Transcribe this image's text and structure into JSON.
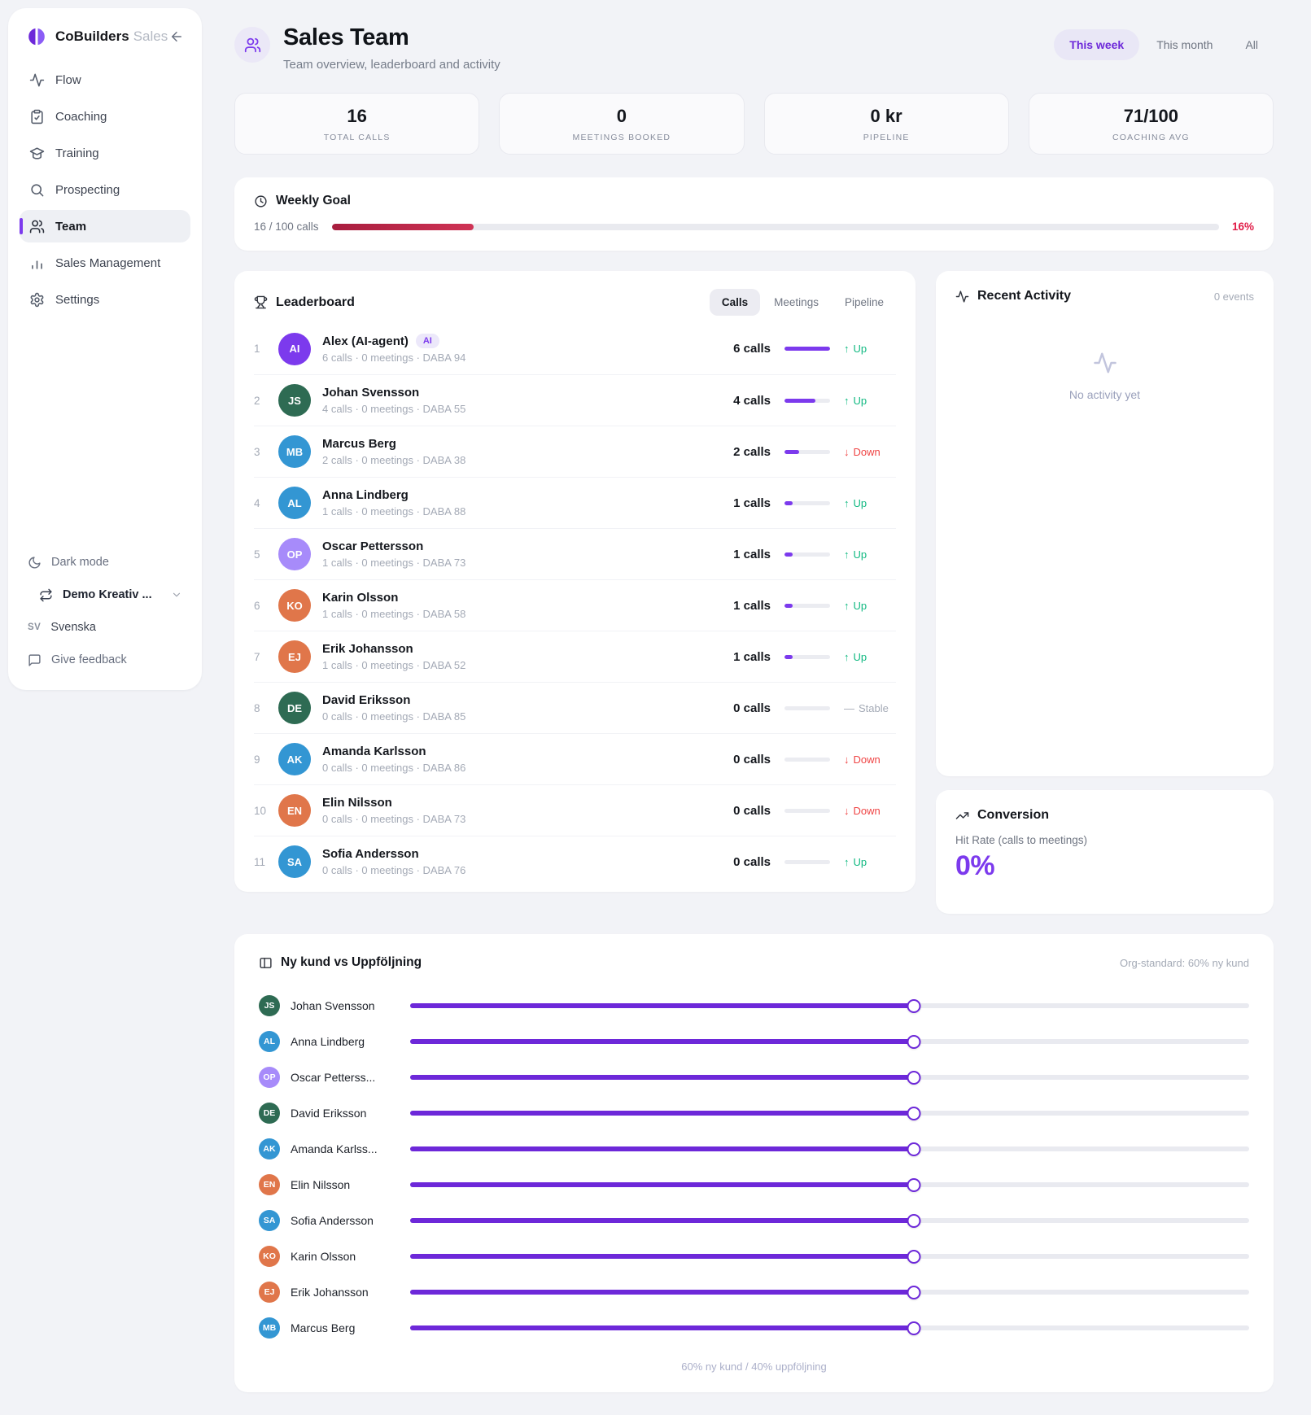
{
  "brand": {
    "name": "CoBuilders",
    "suffix": "Sales"
  },
  "sidebar": {
    "items": [
      {
        "label": "Flow",
        "icon": "flow-icon",
        "active": false
      },
      {
        "label": "Coaching",
        "icon": "coaching-icon",
        "active": false
      },
      {
        "label": "Training",
        "icon": "training-icon",
        "active": false
      },
      {
        "label": "Prospecting",
        "icon": "prospecting-icon",
        "active": false
      },
      {
        "label": "Team",
        "icon": "team-icon",
        "active": true
      },
      {
        "label": "Sales Management",
        "icon": "sales-management-icon",
        "active": false
      },
      {
        "label": "Settings",
        "icon": "settings-icon",
        "active": false
      }
    ],
    "dark_mode_label": "Dark mode",
    "workspace_label": "Demo Kreativ ...",
    "language_code": "SV",
    "language_label": "Svenska",
    "feedback_label": "Give feedback"
  },
  "header": {
    "title": "Sales Team",
    "subtitle": "Team overview, leaderboard and activity",
    "range_tabs": [
      {
        "label": "This week",
        "active": true
      },
      {
        "label": "This month",
        "active": false
      },
      {
        "label": "All",
        "active": false
      }
    ]
  },
  "stats": [
    {
      "value": "16",
      "label": "TOTAL CALLS"
    },
    {
      "value": "0",
      "label": "MEETINGS BOOKED"
    },
    {
      "value": "0 kr",
      "label": "PIPELINE"
    },
    {
      "value": "71/100",
      "label": "COACHING AVG"
    }
  ],
  "weekly_goal": {
    "title": "Weekly Goal",
    "progress_label": "16 / 100 calls",
    "percent": 16,
    "percent_label": "16%"
  },
  "leaderboard": {
    "title": "Leaderboard",
    "tabs": [
      {
        "label": "Calls",
        "active": true
      },
      {
        "label": "Meetings",
        "active": false
      },
      {
        "label": "Pipeline",
        "active": false
      }
    ],
    "rows": [
      {
        "rank": "1",
        "initials": "AI",
        "color": "purple",
        "name": "Alex (AI-agent)",
        "badge": "AI",
        "sub": "6 calls · 0 meetings · DABA 94",
        "calls": "6 calls",
        "bar": 100,
        "trend": "up",
        "trend_label": "Up"
      },
      {
        "rank": "2",
        "initials": "JS",
        "color": "green",
        "name": "Johan Svensson",
        "sub": "4 calls · 0 meetings · DABA 55",
        "calls": "4 calls",
        "bar": 67,
        "trend": "up",
        "trend_label": "Up"
      },
      {
        "rank": "3",
        "initials": "MB",
        "color": "blue",
        "name": "Marcus Berg",
        "sub": "2 calls · 0 meetings · DABA 38",
        "calls": "2 calls",
        "bar": 33,
        "trend": "down",
        "trend_label": "Down"
      },
      {
        "rank": "4",
        "initials": "AL",
        "color": "blue",
        "name": "Anna Lindberg",
        "sub": "1 calls · 0 meetings · DABA 88",
        "calls": "1 calls",
        "bar": 17,
        "trend": "up",
        "trend_label": "Up"
      },
      {
        "rank": "5",
        "initials": "OP",
        "color": "lavender",
        "name": "Oscar Pettersson",
        "sub": "1 calls · 0 meetings · DABA 73",
        "calls": "1 calls",
        "bar": 17,
        "trend": "up",
        "trend_label": "Up"
      },
      {
        "rank": "6",
        "initials": "KO",
        "color": "orange",
        "name": "Karin Olsson",
        "sub": "1 calls · 0 meetings · DABA 58",
        "calls": "1 calls",
        "bar": 17,
        "trend": "up",
        "trend_label": "Up"
      },
      {
        "rank": "7",
        "initials": "EJ",
        "color": "orange",
        "name": "Erik Johansson",
        "sub": "1 calls · 0 meetings · DABA 52",
        "calls": "1 calls",
        "bar": 17,
        "trend": "up",
        "trend_label": "Up"
      },
      {
        "rank": "8",
        "initials": "DE",
        "color": "green",
        "name": "David Eriksson",
        "sub": "0 calls · 0 meetings · DABA 85",
        "calls": "0 calls",
        "bar": 0,
        "trend": "stable",
        "trend_label": "Stable"
      },
      {
        "rank": "9",
        "initials": "AK",
        "color": "blue",
        "name": "Amanda Karlsson",
        "sub": "0 calls · 0 meetings · DABA 86",
        "calls": "0 calls",
        "bar": 0,
        "trend": "down",
        "trend_label": "Down"
      },
      {
        "rank": "10",
        "initials": "EN",
        "color": "orange",
        "name": "Elin Nilsson",
        "sub": "0 calls · 0 meetings · DABA 73",
        "calls": "0 calls",
        "bar": 0,
        "trend": "down",
        "trend_label": "Down"
      },
      {
        "rank": "11",
        "initials": "SA",
        "color": "blue",
        "name": "Sofia Andersson",
        "sub": "0 calls · 0 meetings · DABA 76",
        "calls": "0 calls",
        "bar": 0,
        "trend": "up",
        "trend_label": "Up"
      }
    ]
  },
  "recent_activity": {
    "title": "Recent Activity",
    "events_label": "0 events",
    "empty_text": "No activity yet"
  },
  "conversion": {
    "title": "Conversion",
    "subtitle": "Hit Rate (calls to meetings)",
    "value": "0%"
  },
  "mix_panel": {
    "title": "Ny kund vs Uppföljning",
    "org_standard": "Org-standard: 60% ny kund",
    "footer": "60% ny kund / 40% uppföljning",
    "rows": [
      {
        "initials": "JS",
        "color": "green",
        "name": "Johan Svensson",
        "value": 60
      },
      {
        "initials": "AL",
        "color": "blue",
        "name": "Anna Lindberg",
        "value": 60
      },
      {
        "initials": "OP",
        "color": "lavender",
        "name": "Oscar Petterss...",
        "value": 60
      },
      {
        "initials": "DE",
        "color": "green",
        "name": "David Eriksson",
        "value": 60
      },
      {
        "initials": "AK",
        "color": "blue",
        "name": "Amanda Karlss...",
        "value": 60
      },
      {
        "initials": "EN",
        "color": "orange",
        "name": "Elin Nilsson",
        "value": 60
      },
      {
        "initials": "SA",
        "color": "blue",
        "name": "Sofia Andersson",
        "value": 60
      },
      {
        "initials": "KO",
        "color": "orange",
        "name": "Karin Olsson",
        "value": 60
      },
      {
        "initials": "EJ",
        "color": "orange",
        "name": "Erik Johansson",
        "value": 60
      },
      {
        "initials": "MB",
        "color": "blue",
        "name": "Marcus Berg",
        "value": 60
      }
    ]
  },
  "colors": {
    "accent": "#7c3aed",
    "slider": "#6d28d9",
    "goal_red": "#be2547",
    "up_green": "#10b981",
    "down_red": "#ef4444",
    "avatar_palette": {
      "purple": "#7c3aed",
      "lavender": "#a78bfa",
      "green": "#2e6b53",
      "blue": "#3396d3",
      "orange": "#e0764a"
    }
  }
}
